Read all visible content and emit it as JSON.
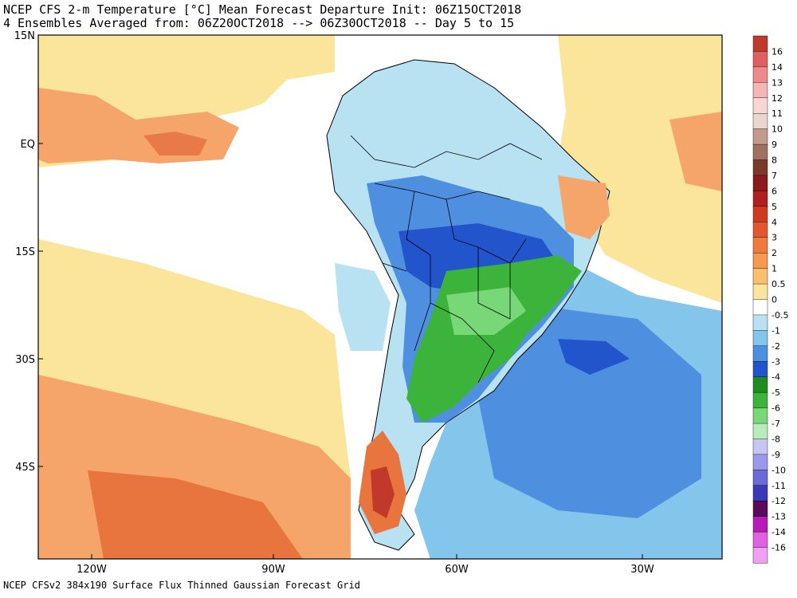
{
  "header": {
    "line1": "NCEP CFS 2-m Temperature [°C] Mean Forecast Departure Init: 06Z15OCT2018",
    "line2": "4 Ensembles Averaged from: 06Z20OCT2018 --> 06Z30OCT2018 -- Day 5 to 15"
  },
  "footer": "NCEP CFSv2 384x190 Surface Flux Thinned Gaussian Forecast Grid",
  "map": {
    "lat_labels": [
      "15N",
      "EQ",
      "15S",
      "30S",
      "45S"
    ],
    "lon_labels": [
      "120W",
      "90W",
      "60W",
      "30W"
    ]
  },
  "colorbar": {
    "labels": [
      "16",
      "14",
      "13",
      "12",
      "11",
      "10",
      "9",
      "8",
      "7",
      "6",
      "5",
      "4",
      "3",
      "2",
      "1",
      "0.5",
      "0",
      "-0.5",
      "-1",
      "-2",
      "-3",
      "-4",
      "-5",
      "-6",
      "-7",
      "-8",
      "-9",
      "-10",
      "-11",
      "-12",
      "-13",
      "-14",
      "-16"
    ],
    "colors": [
      "#c0392b",
      "#e06060",
      "#ee8a8a",
      "#f4b5b5",
      "#f8d6d6",
      "#e9d6d0",
      "#c49a8a",
      "#a07060",
      "#7a3a2a",
      "#8b1a1a",
      "#b02020",
      "#d03a1e",
      "#e4572e",
      "#f07a3a",
      "#f69a50",
      "#f9c070",
      "#fbe59a",
      "#ffffff",
      "#b8e2f2",
      "#84c5ec",
      "#4f8fe0",
      "#2255cc",
      "#1e8c1e",
      "#3cb43c",
      "#78d878",
      "#b8ecb8",
      "#c6c6f2",
      "#9a9ae8",
      "#6a6ad8",
      "#3a3ab8",
      "#5a0a5a",
      "#b81ab8",
      "#e060e0",
      "#f0a0f0"
    ]
  }
}
